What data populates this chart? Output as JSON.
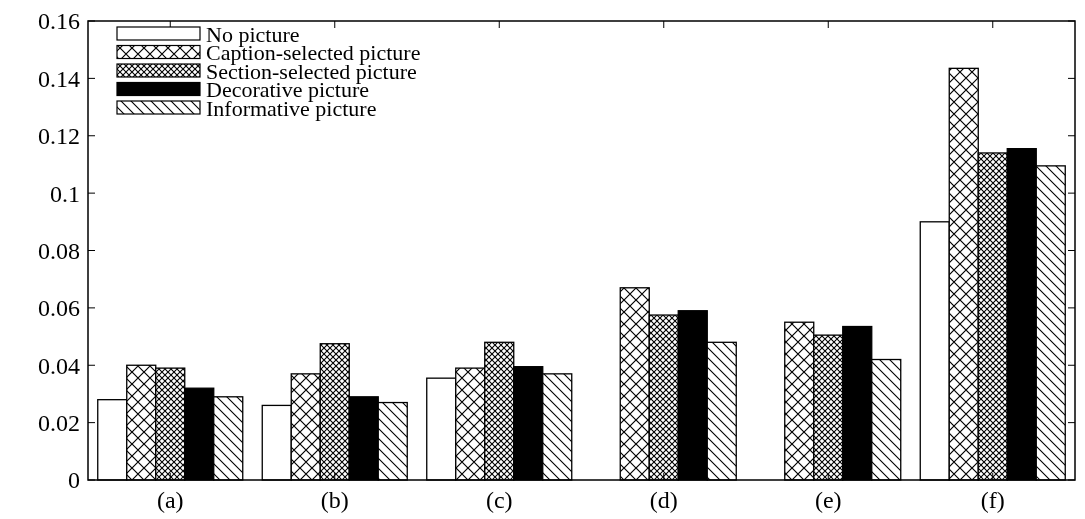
{
  "chart_data": {
    "type": "bar",
    "categories": [
      "(a)",
      "(b)",
      "(c)",
      "(d)",
      "(e)",
      "(f)"
    ],
    "series": [
      {
        "name": "No picture",
        "color": "#ffffff",
        "values": [
          0.028,
          0.026,
          0.0355,
          0,
          0,
          0.09
        ]
      },
      {
        "name": "Caption-selected picture",
        "color": "#000000",
        "values": [
          0.04,
          0.037,
          0.039,
          0.067,
          0.055,
          0.1435
        ]
      },
      {
        "name": "Section-selected picture",
        "color": "#000000",
        "values": [
          0.039,
          0.0475,
          0.048,
          0.0575,
          0.0505,
          0.114
        ]
      },
      {
        "name": "Decorative picture",
        "color": "#000000",
        "values": [
          0.032,
          0.029,
          0.0395,
          0.059,
          0.0535,
          0.1155
        ]
      },
      {
        "name": "Informative picture",
        "color": "#000000",
        "values": [
          0.029,
          0.027,
          0.037,
          0.048,
          0.042,
          0.1095
        ]
      }
    ],
    "ylim": [
      0,
      0.16
    ],
    "yticks": [
      {
        "value": 0,
        "label": "0"
      },
      {
        "value": 0.02,
        "label": "0.02"
      },
      {
        "value": 0.04,
        "label": "0.04"
      },
      {
        "value": 0.06,
        "label": "0.06"
      },
      {
        "value": 0.08,
        "label": "0.08"
      },
      {
        "value": 0.1,
        "label": "0.1"
      },
      {
        "value": 0.12,
        "label": "0.12"
      },
      {
        "value": 0.14,
        "label": "0.14"
      },
      {
        "value": 0.16,
        "label": "0.16"
      }
    ],
    "legend": "top left",
    "grid": false
  }
}
